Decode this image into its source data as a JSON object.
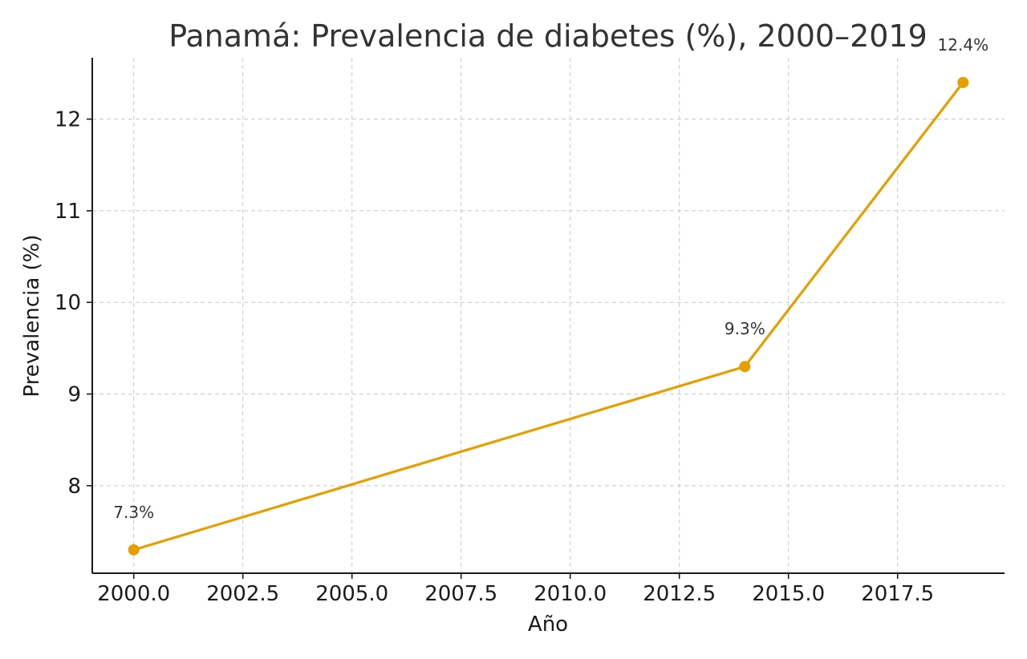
{
  "chart_data": {
    "type": "line",
    "title": "Panamá: Prevalencia de diabetes (%), 2000–2019",
    "xlabel": "Año",
    "ylabel": "Prevalencia (%)",
    "x": [
      2000,
      2014,
      2019
    ],
    "series": [
      {
        "name": "Prevalencia de diabetes",
        "values": [
          7.3,
          9.3,
          12.4
        ],
        "labels": [
          "7.3%",
          "9.3%",
          "12.4%"
        ],
        "color": "#e69f00"
      }
    ],
    "xlim": [
      1999.05,
      2019.95
    ],
    "ylim": [
      7.045,
      12.67
    ],
    "xticks": [
      2000.0,
      2002.5,
      2005.0,
      2007.5,
      2010.0,
      2012.5,
      2015.0,
      2017.5
    ],
    "xtick_labels": [
      "2000.0",
      "2002.5",
      "2005.0",
      "2007.5",
      "2010.0",
      "2012.5",
      "2015.0",
      "2017.5"
    ],
    "yticks": [
      8,
      9,
      10,
      11,
      12
    ],
    "ytick_labels": [
      "8",
      "9",
      "10",
      "11",
      "12"
    ],
    "grid": true,
    "legend": "none"
  }
}
